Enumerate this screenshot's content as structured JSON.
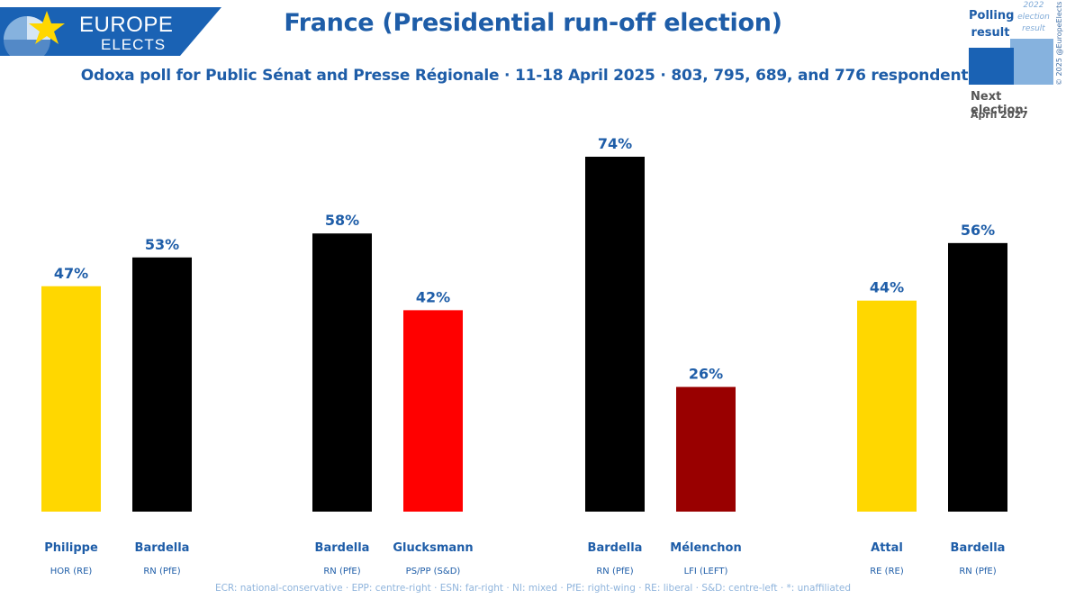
{
  "logo": {
    "line1": "EUROPE",
    "line2": "ELECTS"
  },
  "header": {
    "title": "France (Presidential run-off election)",
    "subtitle": "Odoxa poll for Public Sénat and Presse Régionale · 11-18 April 2025 · 803, 795, 689, and 776 respondents"
  },
  "legend": {
    "polling_label": "Polling result",
    "result_label": "2022 election result",
    "next_election_label": "Next election:",
    "next_election_date": "April 2027",
    "polling_color": "#1a62b4",
    "result_color": "#86b2de"
  },
  "copyright": "© 2025 @EuropeElects",
  "footer": "ECR: national-conservative · EPP: centre-right · ESN: far-right · NI: mixed · PfE: right-wing · RE: liberal · S&D: centre-left · *: unaffiliated",
  "chart_data": {
    "type": "bar",
    "title": "France (Presidential run-off election)",
    "unit": "%",
    "ylim": [
      0,
      74
    ],
    "groups": [
      {
        "bars": [
          {
            "name": "Philippe",
            "party": "HOR (RE)",
            "value": 47,
            "label": "47%",
            "color": "#FFD700"
          },
          {
            "name": "Bardella",
            "party": "RN (PfE)",
            "value": 53,
            "label": "53%",
            "color": "#000000"
          }
        ]
      },
      {
        "bars": [
          {
            "name": "Bardella",
            "party": "RN (PfE)",
            "value": 58,
            "label": "58%",
            "color": "#000000"
          },
          {
            "name": "Glucksmann",
            "party": "PS/PP (S&D)",
            "value": 42,
            "label": "42%",
            "color": "#FF0000"
          }
        ]
      },
      {
        "bars": [
          {
            "name": "Bardella",
            "party": "RN (PfE)",
            "value": 74,
            "label": "74%",
            "color": "#000000"
          },
          {
            "name": "Mélenchon",
            "party": "LFI (LEFT)",
            "value": 26,
            "label": "26%",
            "color": "#990000"
          }
        ]
      },
      {
        "bars": [
          {
            "name": "Attal",
            "party": "RE (RE)",
            "value": 44,
            "label": "44%",
            "color": "#FFD700"
          },
          {
            "name": "Bardella",
            "party": "RN (PfE)",
            "value": 56,
            "label": "56%",
            "color": "#000000"
          }
        ]
      }
    ]
  }
}
